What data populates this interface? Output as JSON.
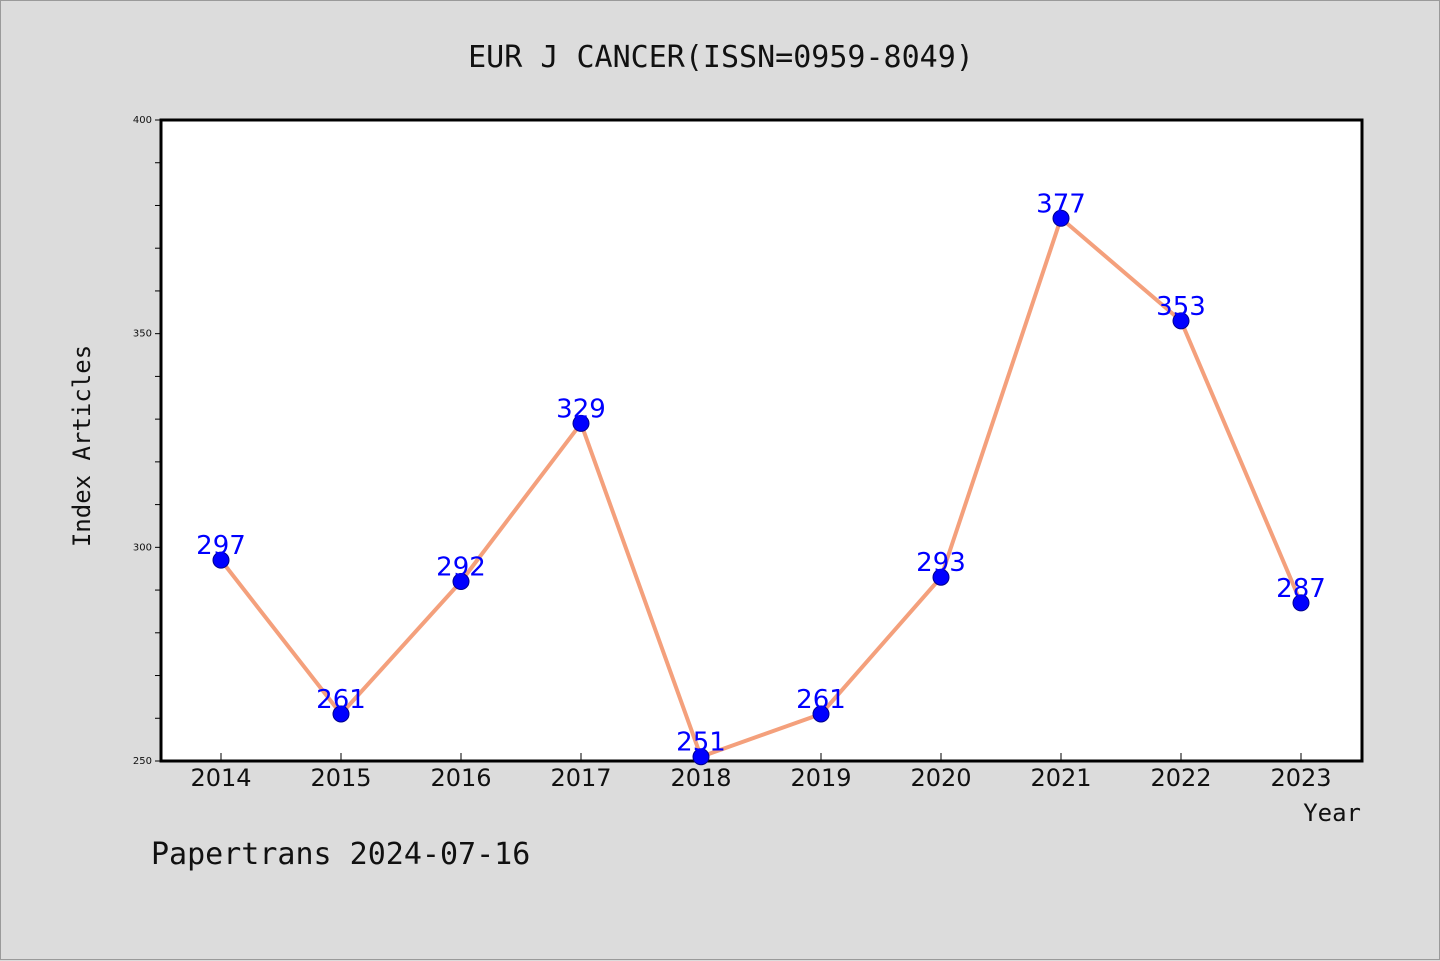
{
  "chart_data": {
    "type": "line",
    "title": "EUR J CANCER(ISSN=0959-8049)",
    "xlabel": "Year",
    "ylabel": "Index Articles",
    "categories": [
      "2014",
      "2015",
      "2016",
      "2017",
      "2018",
      "2019",
      "2020",
      "2021",
      "2022",
      "2023"
    ],
    "series": [
      {
        "values": [
          297,
          261,
          292,
          329,
          251,
          261,
          293,
          377,
          353,
          287
        ]
      }
    ],
    "ylim": [
      250,
      400
    ],
    "yticks": [
      "250",
      "300",
      "350",
      "400"
    ],
    "grid": false,
    "colors": {
      "line": "#f4a07c",
      "marker": "#0000ff",
      "data_label": "#0000ff",
      "background": "#dcdcdc",
      "plot_background": "#ffffff"
    }
  },
  "footer": {
    "watermark": "Papertrans 2024-07-16"
  }
}
